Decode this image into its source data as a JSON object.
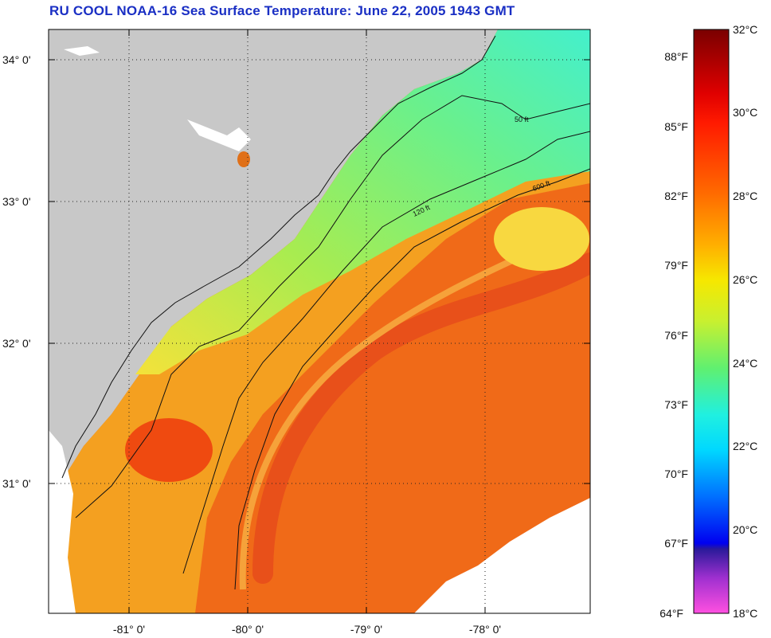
{
  "title": "RU COOL  NOAA-16  Sea Surface Temperature:  June 22, 2005 1943 GMT",
  "map": {
    "lat_labels": [
      "34° 0'",
      "33° 0'",
      "32° 0'",
      "31° 0'"
    ],
    "lon_labels": [
      "-81° 0'",
      "-80° 0'",
      "-79° 0'",
      "-78° 0'"
    ],
    "contour_labels": [
      "50 ft",
      "120 ft",
      "600 ft"
    ]
  },
  "colorbar": {
    "celsius": [
      "32°C",
      "30°C",
      "28°C",
      "26°C",
      "24°C",
      "22°C",
      "20°C",
      "18°C"
    ],
    "fahrenheit": [
      "88°F",
      "85°F",
      "82°F",
      "79°F",
      "76°F",
      "73°F",
      "70°F",
      "67°F",
      "64°F"
    ]
  },
  "colors": {
    "title": "#1a2fc4",
    "land": "#c8c8c8",
    "warm_water": "#f06a18",
    "shelf_water": "#8ee860",
    "cool_water": "#52f0b8"
  }
}
